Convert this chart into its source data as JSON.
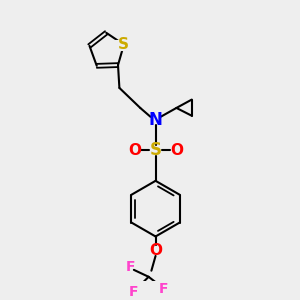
{
  "bg_color": "#eeeeee",
  "bond_color": "#000000",
  "S_sulfonyl_color": "#ccaa00",
  "N_color": "#0000ff",
  "O_color": "#ff0000",
  "F_color": "#ff44cc",
  "thiophene_S_color": "#ccaa00",
  "figsize": [
    3.0,
    3.0
  ],
  "dpi": 100,
  "xlim": [
    0,
    10
  ],
  "ylim": [
    0,
    10
  ]
}
